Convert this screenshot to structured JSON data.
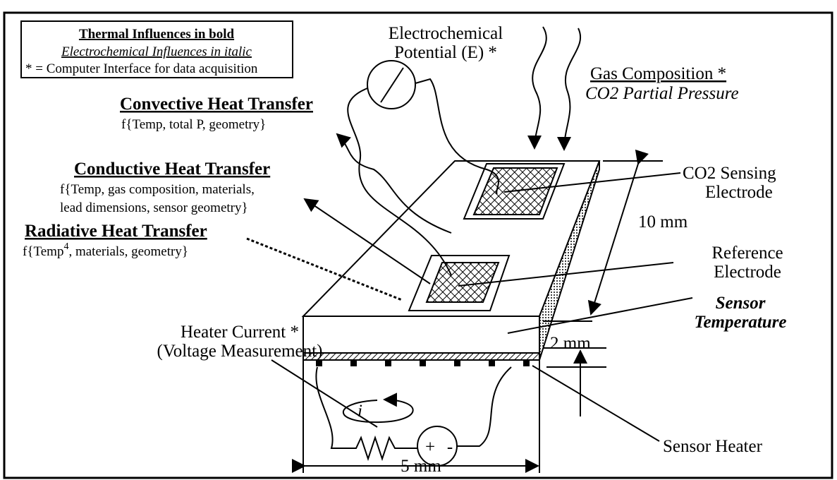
{
  "legend": {
    "bold_note": "Thermal Influences in bold",
    "italic_note": "Electrochemical Influences in italic",
    "star_note": "* = Computer Interface for data acquisition"
  },
  "potential": {
    "line1": "Electrochemical",
    "line2": "Potential (E) *"
  },
  "gas": {
    "line1": "Gas Composition *",
    "line2": "CO2 Partial Pressure"
  },
  "convective": {
    "title": "Convective Heat Transfer",
    "formula": "f{Temp, total P, geometry}"
  },
  "conductive": {
    "title": "Conductive Heat Transfer",
    "formula1": "f{Temp, gas composition, materials,",
    "formula2": "lead dimensions, sensor geometry}"
  },
  "radiative": {
    "title": "Radiative Heat Transfer",
    "formula_a": "f{Temp",
    "exponent": "4",
    "formula_b": ", materials, geometry}"
  },
  "co2_electrode": {
    "line1": "CO2 Sensing",
    "line2": "Electrode"
  },
  "reference_electrode": {
    "line1": "Reference",
    "line2": "Electrode"
  },
  "length": "10 mm",
  "thickness": "2 mm",
  "width": "5 mm",
  "sensor_temperature": {
    "line1": "Sensor",
    "line2": "Temperature"
  },
  "heater_current": {
    "line1": "Heater Current *",
    "line2": "(Voltage Measurement)"
  },
  "current_symbol": "i",
  "plus": "+",
  "minus": "-",
  "sensor_heater": "Sensor Heater"
}
